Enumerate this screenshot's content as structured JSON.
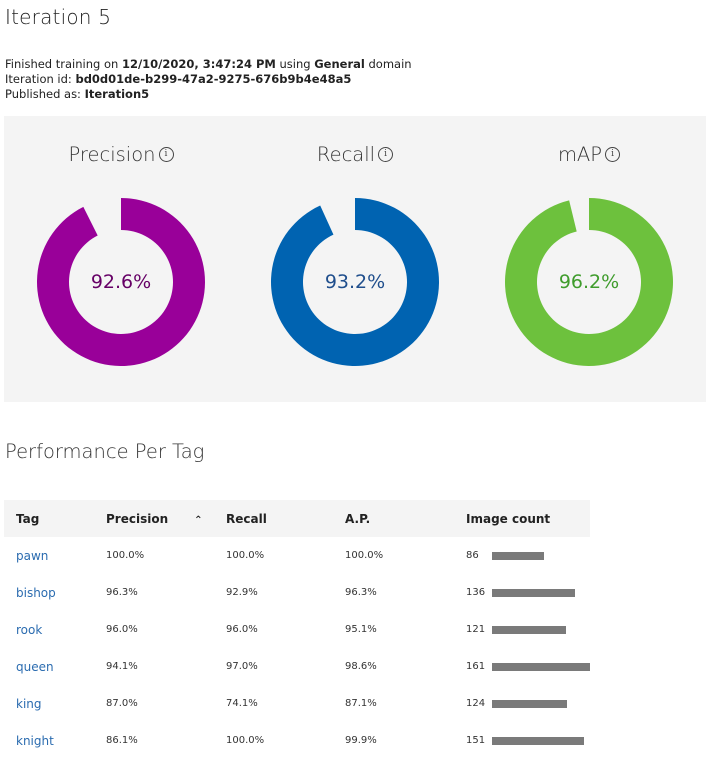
{
  "header": {
    "title": "Iteration 5",
    "finished_prefix": "Finished training on ",
    "finished_date": "12/10/2020, 3:47:24 PM",
    "using_text": " using ",
    "domain": "General",
    "domain_suffix": " domain",
    "iteration_id_label": "Iteration id: ",
    "iteration_id": "bd0d01de-b299-47a2-9275-676b9b4e48a5",
    "published_label": "Published as: ",
    "published_name": "Iteration5"
  },
  "metrics": [
    {
      "label": "Precision",
      "value_text": "92.6%",
      "value": 92.6,
      "color": "#990099",
      "text_color": "#660066",
      "icon": "info-icon"
    },
    {
      "label": "Recall",
      "value_text": "93.2%",
      "value": 93.2,
      "color": "#0063b1",
      "text_color": "#1f4e8c",
      "icon": "info-icon"
    },
    {
      "label": "mAP",
      "value_text": "96.2%",
      "value": 96.2,
      "color": "#6dc13d",
      "text_color": "#3f9c2c",
      "icon": "info-icon"
    }
  ],
  "performance": {
    "title": "Performance Per Tag",
    "columns": [
      "Tag",
      "Precision",
      "Recall",
      "A.P.",
      "Image count"
    ],
    "sort_icon": "chevron-up-icon",
    "max_count": 161,
    "rows": [
      {
        "tag": "pawn",
        "precision": "100.0%",
        "recall": "100.0%",
        "ap": "100.0%",
        "count": 86
      },
      {
        "tag": "bishop",
        "precision": "96.3%",
        "recall": "92.9%",
        "ap": "96.3%",
        "count": 136
      },
      {
        "tag": "rook",
        "precision": "96.0%",
        "recall": "96.0%",
        "ap": "95.1%",
        "count": 121
      },
      {
        "tag": "queen",
        "precision": "94.1%",
        "recall": "97.0%",
        "ap": "98.6%",
        "count": 161
      },
      {
        "tag": "king",
        "precision": "87.0%",
        "recall": "74.1%",
        "ap": "87.1%",
        "count": 124
      },
      {
        "tag": "knight",
        "precision": "86.1%",
        "recall": "100.0%",
        "ap": "99.9%",
        "count": 151
      }
    ]
  }
}
